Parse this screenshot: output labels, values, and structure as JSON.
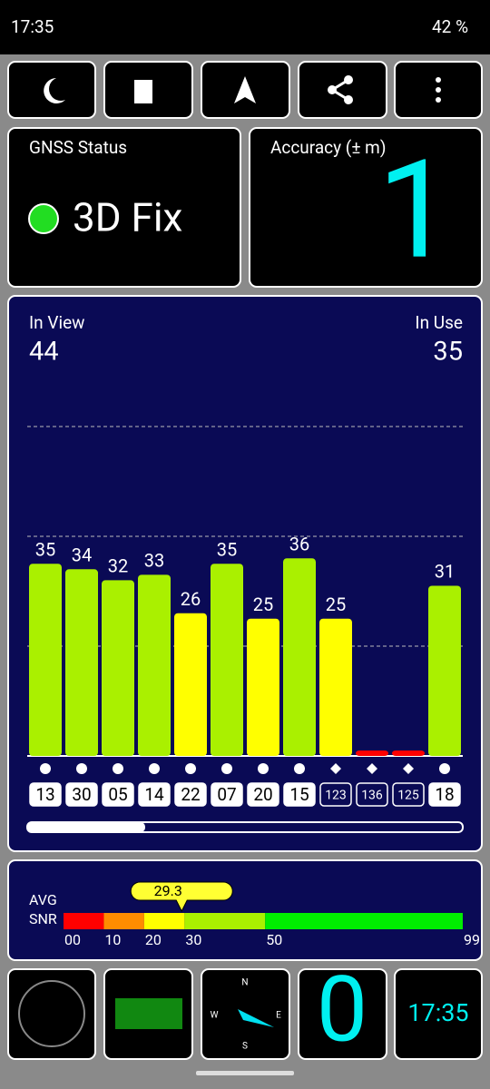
{
  "status_bar": {
    "time": "17:35",
    "battery": "42 %"
  },
  "gnss_status": {
    "label": "GNSS Status",
    "fix": "3D Fix"
  },
  "accuracy": {
    "label": "Accuracy (± m)",
    "value": 1
  },
  "satellites": {
    "in_view_label": "In View",
    "in_view": 44,
    "in_use_label": "In Use",
    "in_use": 35,
    "ylim": [
      0,
      60
    ],
    "grid": [
      20,
      40,
      60
    ],
    "bars": [
      {
        "id": "13",
        "snr": 35,
        "used": true
      },
      {
        "id": "30",
        "snr": 34,
        "used": true
      },
      {
        "id": "05",
        "snr": 32,
        "used": true
      },
      {
        "id": "14",
        "snr": 33,
        "used": true
      },
      {
        "id": "22",
        "snr": 26,
        "used": true
      },
      {
        "id": "07",
        "snr": 35,
        "used": true
      },
      {
        "id": "20",
        "snr": 25,
        "used": true
      },
      {
        "id": "15",
        "snr": 36,
        "used": true
      },
      {
        "id": "123",
        "snr": 25,
        "used": false
      },
      {
        "id": "136",
        "snr": 1,
        "used": false
      },
      {
        "id": "125",
        "snr": 1,
        "used": false
      },
      {
        "id": "18",
        "snr": 31,
        "used": true
      }
    ],
    "value_labels": [
      "35",
      "34",
      "32",
      "33",
      "26",
      "35",
      "25",
      "36",
      "25",
      null,
      null,
      "31"
    ]
  },
  "avg_snr": {
    "label_1": "AVG",
    "label_2": "SNR",
    "value": 29.3,
    "xlim": [
      0,
      99
    ],
    "segments": [
      {
        "from": 0,
        "to": 10,
        "color": "#ff0000"
      },
      {
        "from": 10,
        "to": 20,
        "color": "#ff8c00"
      },
      {
        "from": 20,
        "to": 30,
        "color": "#ffff00"
      },
      {
        "from": 30,
        "to": 50,
        "color": "#aaf000"
      },
      {
        "from": 50,
        "to": 99,
        "color": "#00ee00"
      }
    ],
    "ticks": [
      {
        "value": 0,
        "label": "00"
      },
      10,
      20,
      30,
      50,
      99
    ]
  },
  "bottom": {
    "compass": [
      "N",
      "E",
      "S",
      "W"
    ],
    "count": 0,
    "time": "17:35"
  }
}
